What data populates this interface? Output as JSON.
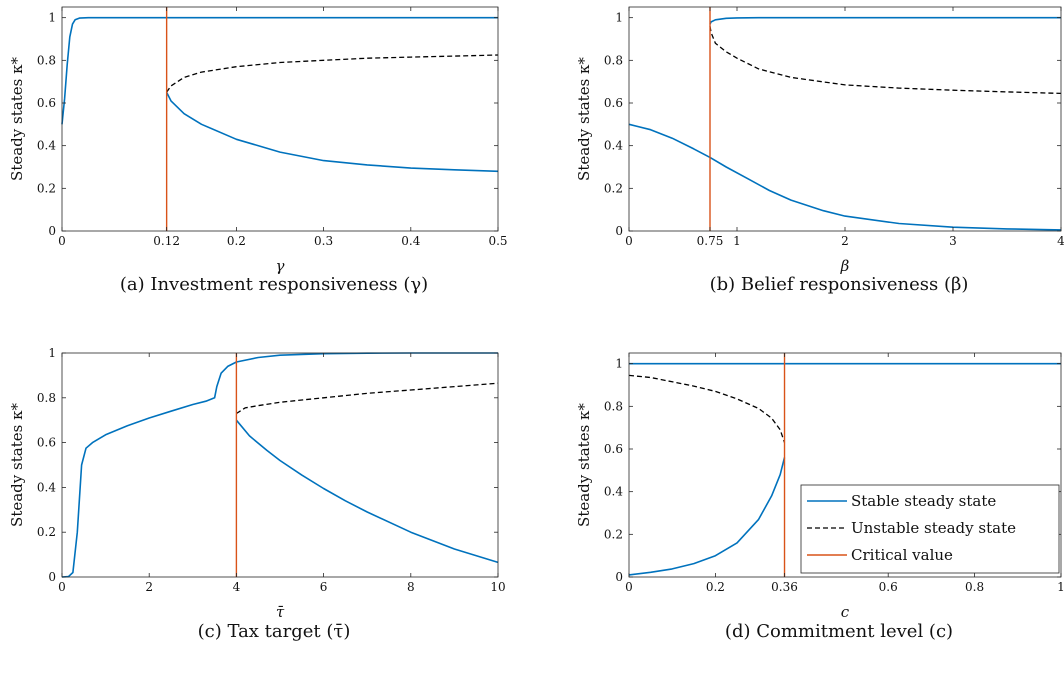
{
  "chart_data": [
    {
      "type": "line",
      "panel": "a",
      "caption": "(a) Investment responsiveness (γ)",
      "xlabel": "γ",
      "ylabel": "Steady states κ*",
      "xlim": [
        0,
        0.5
      ],
      "ylim": [
        0,
        1.05
      ],
      "xticks": [
        0,
        0.12,
        0.2,
        0.3,
        0.4,
        0.5
      ],
      "xtick_labels": [
        "0",
        "0.12",
        "0.2",
        "0.3",
        "0.4",
        "0.5"
      ],
      "yticks": [
        0,
        0.2,
        0.4,
        0.6,
        0.8,
        1
      ],
      "ytick_labels": [
        "0",
        "0.2",
        "0.4",
        "0.6",
        "0.8",
        "1"
      ],
      "critical_value": 0.12,
      "series": [
        {
          "role": "stable",
          "x": [
            0,
            0.003,
            0.006,
            0.009,
            0.012,
            0.015,
            0.02,
            0.03,
            0.05,
            0.1,
            0.2,
            0.3,
            0.4,
            0.5
          ],
          "y": [
            0.5,
            0.62,
            0.78,
            0.91,
            0.97,
            0.99,
            0.998,
            1.0,
            1.0,
            1.0,
            1.0,
            1.0,
            1.0,
            1.0
          ]
        },
        {
          "role": "stable",
          "x": [
            0.12,
            0.125,
            0.14,
            0.16,
            0.2,
            0.25,
            0.3,
            0.35,
            0.4,
            0.45,
            0.5
          ],
          "y": [
            0.65,
            0.61,
            0.55,
            0.5,
            0.43,
            0.37,
            0.33,
            0.31,
            0.295,
            0.287,
            0.28
          ]
        },
        {
          "role": "unstable",
          "x": [
            0.12,
            0.125,
            0.14,
            0.16,
            0.2,
            0.25,
            0.3,
            0.35,
            0.4,
            0.45,
            0.5
          ],
          "y": [
            0.65,
            0.68,
            0.72,
            0.745,
            0.77,
            0.79,
            0.8,
            0.81,
            0.815,
            0.82,
            0.825
          ]
        }
      ]
    },
    {
      "type": "line",
      "panel": "b",
      "caption": "(b) Belief responsiveness (β)",
      "xlabel": "β",
      "ylabel": "Steady states κ*",
      "xlim": [
        0,
        4
      ],
      "ylim": [
        0,
        1.05
      ],
      "xticks": [
        0,
        0.75,
        1,
        2,
        3,
        4
      ],
      "xtick_labels": [
        "0",
        "0.75",
        "1",
        "2",
        "3",
        "4"
      ],
      "yticks": [
        0,
        0.2,
        0.4,
        0.6,
        0.8,
        1
      ],
      "ytick_labels": [
        "0",
        "0.2",
        "0.4",
        "0.6",
        "0.8",
        "1"
      ],
      "critical_value": 0.75,
      "series": [
        {
          "role": "stable",
          "x": [
            0,
            0.2,
            0.4,
            0.6,
            0.75,
            0.9,
            1.1,
            1.3,
            1.5,
            1.8,
            2.0,
            2.5,
            3.0,
            3.5,
            4.0
          ],
          "y": [
            0.5,
            0.475,
            0.435,
            0.385,
            0.345,
            0.3,
            0.245,
            0.19,
            0.145,
            0.095,
            0.07,
            0.035,
            0.018,
            0.01,
            0.005
          ]
        },
        {
          "role": "stable",
          "x": [
            0.75,
            0.76,
            0.8,
            0.9,
            1.0,
            1.2,
            1.5,
            2.0,
            3.0,
            4.0
          ],
          "y": [
            0.97,
            0.98,
            0.99,
            0.997,
            0.999,
            1.0,
            1.0,
            1.0,
            1.0,
            1.0
          ]
        },
        {
          "role": "unstable",
          "x": [
            0.75,
            0.76,
            0.8,
            0.9,
            1.0,
            1.2,
            1.5,
            2.0,
            2.5,
            3.0,
            3.5,
            4.0
          ],
          "y": [
            0.96,
            0.93,
            0.88,
            0.84,
            0.81,
            0.76,
            0.72,
            0.685,
            0.67,
            0.66,
            0.652,
            0.645
          ]
        }
      ]
    },
    {
      "type": "line",
      "panel": "c",
      "caption": "(c) Tax target (τ̄)",
      "xlabel": "τ̄",
      "ylabel": "Steady states κ*",
      "xlim": [
        0,
        10
      ],
      "ylim": [
        0,
        1
      ],
      "xticks": [
        0,
        2,
        4,
        6,
        8,
        10
      ],
      "xtick_labels": [
        "0",
        "2",
        "4",
        "6",
        "8",
        "10"
      ],
      "yticks": [
        0,
        0.2,
        0.4,
        0.6,
        0.8,
        1
      ],
      "ytick_labels": [
        "0",
        "0.2",
        "0.4",
        "0.6",
        "0.8",
        "1"
      ],
      "critical_value": 4,
      "series": [
        {
          "role": "stable",
          "x": [
            0,
            0.15,
            0.25,
            0.35,
            0.45,
            0.55,
            0.7,
            1.0,
            1.5,
            2.0,
            2.5,
            3.0,
            3.3,
            3.5,
            3.55,
            3.65,
            3.8,
            4.0,
            4.5,
            5.0,
            6.0,
            7.0,
            8.0,
            9.0,
            10.0
          ],
          "y": [
            0,
            0.002,
            0.02,
            0.2,
            0.5,
            0.575,
            0.6,
            0.635,
            0.675,
            0.71,
            0.74,
            0.77,
            0.785,
            0.8,
            0.85,
            0.91,
            0.94,
            0.96,
            0.98,
            0.99,
            0.997,
            0.999,
            1.0,
            1.0,
            1.0
          ]
        },
        {
          "role": "stable",
          "x": [
            4.0,
            4.3,
            4.7,
            5.0,
            5.5,
            6.0,
            6.5,
            7.0,
            8.0,
            9.0,
            10.0
          ],
          "y": [
            0.7,
            0.63,
            0.565,
            0.52,
            0.455,
            0.395,
            0.34,
            0.29,
            0.2,
            0.125,
            0.065
          ]
        },
        {
          "role": "unstable",
          "x": [
            4.0,
            4.2,
            4.5,
            5.0,
            5.5,
            6.0,
            7.0,
            8.0,
            9.0,
            10.0
          ],
          "y": [
            0.73,
            0.755,
            0.765,
            0.78,
            0.79,
            0.8,
            0.82,
            0.835,
            0.85,
            0.865
          ]
        }
      ]
    },
    {
      "type": "line",
      "panel": "d",
      "caption": "(d) Commitment level (c)",
      "xlabel": "c",
      "ylabel": "Steady states κ*",
      "xlim": [
        0,
        1
      ],
      "ylim": [
        0,
        1.05
      ],
      "xticks": [
        0,
        0.2,
        0.36,
        0.6,
        0.8,
        1
      ],
      "xtick_labels": [
        "0",
        "0.2",
        "0.36",
        "0.6",
        "0.8",
        "1"
      ],
      "yticks": [
        0,
        0.2,
        0.4,
        0.6,
        0.8,
        1
      ],
      "ytick_labels": [
        "0",
        "0.2",
        "0.4",
        "0.6",
        "0.8",
        "1"
      ],
      "critical_value": 0.36,
      "legend": {
        "placement": "lower-right",
        "entries": [
          "Stable steady state",
          "Unstable steady state",
          "Critical value"
        ]
      },
      "series": [
        {
          "role": "stable",
          "x": [
            0,
            1
          ],
          "y": [
            1,
            1
          ]
        },
        {
          "role": "stable",
          "x": [
            0,
            0.05,
            0.1,
            0.15,
            0.2,
            0.25,
            0.3,
            0.33,
            0.35,
            0.36
          ],
          "y": [
            0.01,
            0.022,
            0.038,
            0.063,
            0.1,
            0.16,
            0.27,
            0.38,
            0.48,
            0.56
          ]
        },
        {
          "role": "unstable",
          "x": [
            0,
            0.05,
            0.1,
            0.15,
            0.2,
            0.25,
            0.3,
            0.33,
            0.35,
            0.36
          ],
          "y": [
            0.945,
            0.935,
            0.915,
            0.895,
            0.87,
            0.835,
            0.79,
            0.745,
            0.69,
            0.63
          ]
        }
      ]
    }
  ],
  "colors": {
    "stable": "#0072BD",
    "unstable": "#000000",
    "critical": "#D95319",
    "axis": "#262626"
  }
}
